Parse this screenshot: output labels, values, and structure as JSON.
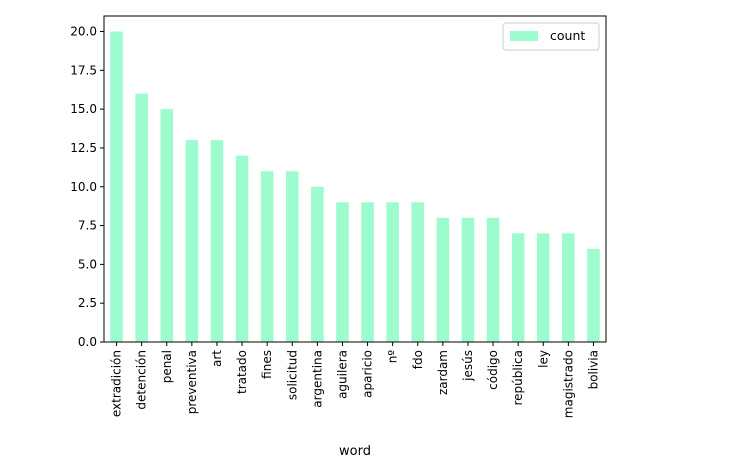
{
  "chart_data": {
    "type": "bar",
    "categories": [
      "extradición",
      "detención",
      "penal",
      "preventiva",
      "art",
      "tratado",
      "fines",
      "solicitud",
      "argentina",
      "aguilera",
      "aparicio",
      "nº",
      "fdo",
      "zardam",
      "jesús",
      "código",
      "república",
      "ley",
      "magistrado",
      "bolivia"
    ],
    "series": [
      {
        "name": "count",
        "values": [
          20,
          16,
          15,
          13,
          13,
          12,
          11,
          11,
          10,
          9,
          9,
          9,
          9,
          8,
          8,
          8,
          7,
          7,
          7,
          6
        ]
      }
    ],
    "xlabel": "word",
    "ylabel": "",
    "ylim": [
      0,
      21
    ],
    "yticks": [
      "0.0",
      "2.5",
      "5.0",
      "7.5",
      "10.0",
      "12.5",
      "15.0",
      "17.5",
      "20.0"
    ],
    "grid": false,
    "legend": "top-right",
    "bar_color": "#9cfcce"
  }
}
